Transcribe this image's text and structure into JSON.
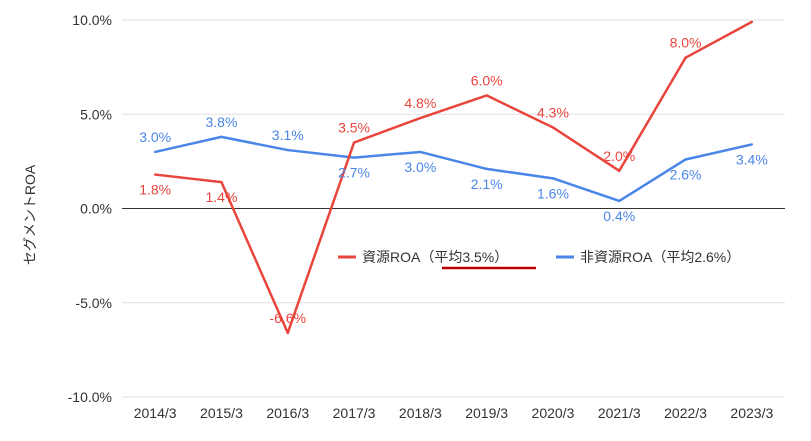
{
  "chart_data": {
    "type": "line",
    "title": "",
    "xlabel": "",
    "ylabel": "セグメントROA",
    "ylim": [
      -10,
      10
    ],
    "yticks": [
      {
        "value": 10,
        "label": "10.0%"
      },
      {
        "value": 5,
        "label": "5.0%"
      },
      {
        "value": 0,
        "label": "0.0%"
      },
      {
        "value": -5,
        "label": "-5.0%"
      },
      {
        "value": -10,
        "label": "-10.0%"
      }
    ],
    "categories": [
      "2014/3",
      "2015/3",
      "2016/3",
      "2017/3",
      "2018/3",
      "2019/3",
      "2020/3",
      "2021/3",
      "2022/3",
      "2023/3"
    ],
    "series": [
      {
        "name": "資源ROA（平均3.5%）",
        "color": "#e8453c",
        "values": [
          1.8,
          1.4,
          -6.6,
          3.5,
          4.8,
          6.0,
          4.3,
          2.0,
          8.0,
          9.9
        ],
        "labels": [
          "1.8%",
          "1.4%",
          "-6.6%",
          "3.5%",
          "4.8%",
          "6.0%",
          "4.3%",
          "2.0%",
          "8.0%",
          ""
        ]
      },
      {
        "name": "非資源ROA（平均2.6%）",
        "color": "#4a86e8",
        "values": [
          3.0,
          3.8,
          3.1,
          2.7,
          3.0,
          2.1,
          1.6,
          0.4,
          2.6,
          3.4
        ],
        "labels": [
          "3.0%",
          "3.8%",
          "3.1%",
          "2.7%",
          "3.0%",
          "2.1%",
          "1.6%",
          "0.4%",
          "2.6%",
          "3.4%"
        ]
      }
    ],
    "legend_position": "center-right",
    "legend_underline_color": "#c00000"
  }
}
